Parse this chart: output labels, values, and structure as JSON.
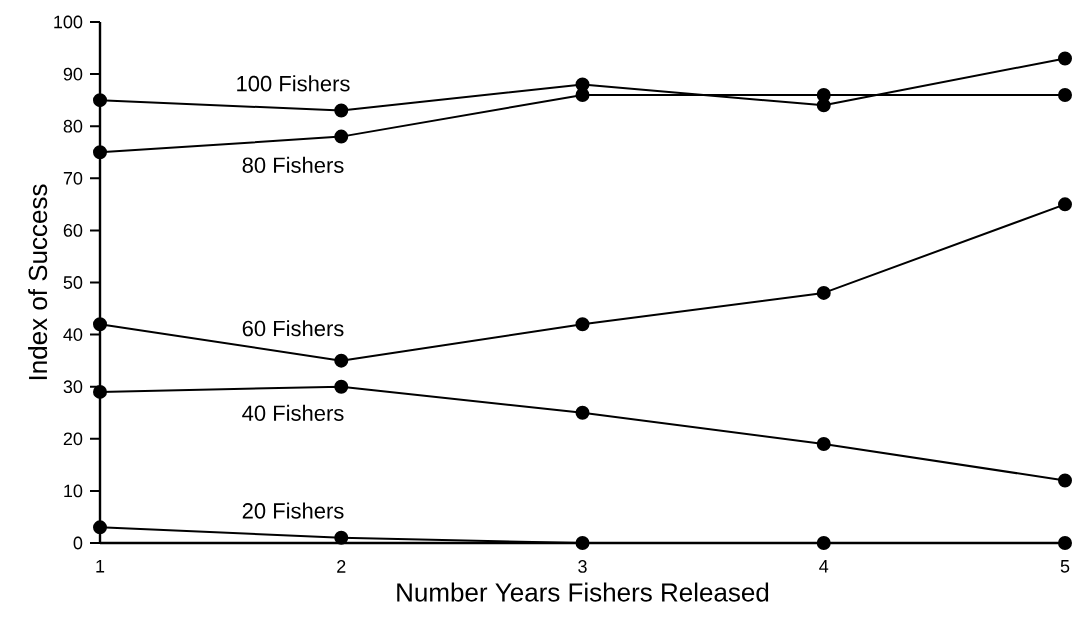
{
  "chart_data": {
    "type": "line",
    "xlabel": "Number  Years Fishers Released",
    "ylabel": "Index of Success",
    "x": [
      1,
      2,
      3,
      4,
      5
    ],
    "series": [
      {
        "name": "100 Fishers",
        "color": "#000000",
        "values": [
          85,
          83,
          88,
          84,
          93
        ]
      },
      {
        "name": "80 Fishers",
        "color": "#000000",
        "values": [
          75,
          78,
          86,
          86,
          86
        ]
      },
      {
        "name": "60 Fishers",
        "color": "#000000",
        "values": [
          42,
          35,
          42,
          48,
          65
        ]
      },
      {
        "name": "40 Fishers",
        "color": "#000000",
        "values": [
          29,
          30,
          25,
          19,
          12
        ]
      },
      {
        "name": "20 Fishers",
        "color": "#000000",
        "values": [
          3,
          1,
          0,
          0,
          0
        ]
      }
    ],
    "xlim": [
      1,
      5
    ],
    "ylim": [
      0,
      100
    ],
    "xticks": [
      1,
      2,
      3,
      4,
      5
    ],
    "yticks": [
      0,
      10,
      20,
      30,
      40,
      50,
      60,
      70,
      80,
      90,
      100
    ],
    "marker": "circle",
    "line_style": "solid",
    "grid": false
  }
}
